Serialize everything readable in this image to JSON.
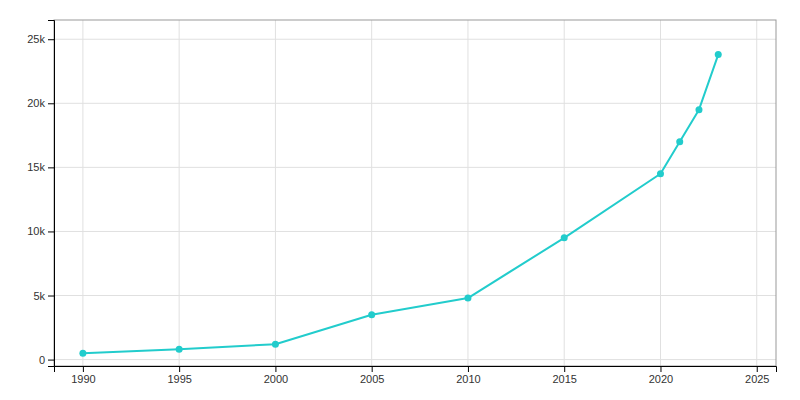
{
  "chart_data": {
    "type": "line",
    "x": [
      1990,
      1995,
      2000,
      2005,
      2010,
      2015,
      2020,
      2021,
      2022,
      2023
    ],
    "values": [
      500,
      800,
      1200,
      3500,
      4800,
      9500,
      14500,
      17000,
      19500,
      23800
    ],
    "color": "#22CCCC",
    "marker": "circle",
    "xlim": [
      1988.5,
      2026
    ],
    "xticks": [
      1990,
      1995,
      2000,
      2005,
      2010,
      2015,
      2020,
      2025
    ],
    "ylim": [
      -500,
      26500
    ],
    "yticks": [
      0,
      {
        "value": 5000,
        "label": "5k"
      },
      {
        "value": 10000,
        "label": "10k"
      },
      {
        "value": 15000,
        "label": "15k"
      },
      {
        "value": 20000,
        "label": "20k"
      },
      {
        "value": 25000,
        "label": "25k"
      }
    ],
    "grid": true
  }
}
